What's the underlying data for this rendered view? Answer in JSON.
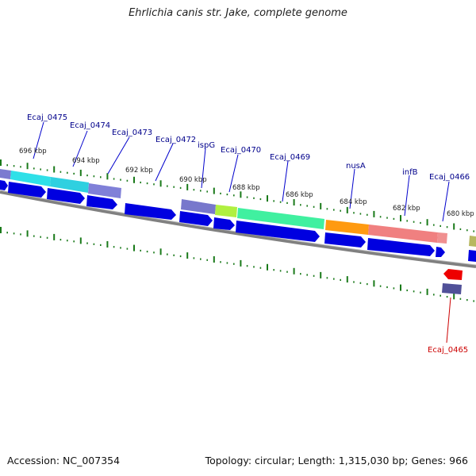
{
  "title": "Ehrlichia canis str. Jake, complete genome",
  "accession": "Accession: NC_007354",
  "summary": "Topology: circular; Length: 1,315,030 bp; Genes: 966",
  "colors": {
    "label": "#00008b",
    "highlight_label": "#cc0000",
    "cds": "#0000e0",
    "backbone": "#808080",
    "tick": "#1a7a1a"
  },
  "kbp_labels": [
    "696 kbp",
    "694 kbp",
    "692 kbp",
    "690 kbp",
    "688 kbp",
    "686 kbp",
    "684 kbp",
    "682 kbp",
    "680 kbp"
  ],
  "gene_labels": [
    "Ecaj_0475",
    "Ecaj_0474",
    "Ecaj_0473",
    "Ecaj_0472",
    "ispG",
    "Ecaj_0470",
    "Ecaj_0469",
    "nusA",
    "infB",
    "Ecaj_0466"
  ],
  "highlight_label": "Ecaj_0465"
}
